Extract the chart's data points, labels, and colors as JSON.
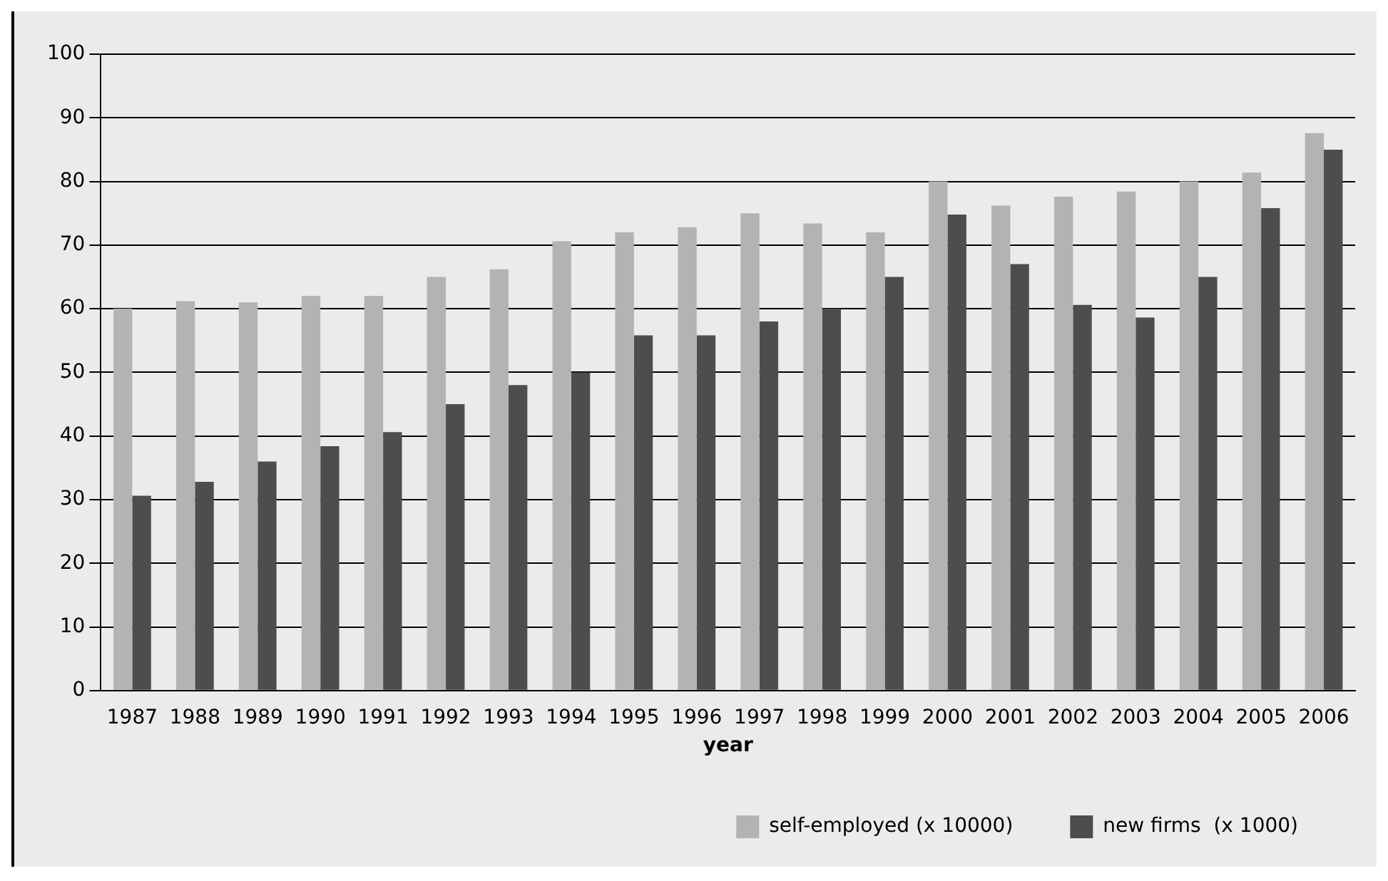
{
  "chart_data": {
    "type": "bar",
    "xlabel": "year",
    "categories": [
      "1987",
      "1988",
      "1989",
      "1990",
      "1991",
      "1992",
      "1993",
      "1994",
      "1995",
      "1996",
      "1997",
      "1998",
      "1999",
      "2000",
      "2001",
      "2002",
      "2003",
      "2004",
      "2005",
      "2006"
    ],
    "series": [
      {
        "name": "self-employed (x 10000)",
        "color": "#b3b3b3",
        "values": [
          60,
          61.2,
          61,
          62,
          62,
          65,
          66.2,
          70.6,
          72,
          72.8,
          75,
          73.4,
          72,
          80,
          76.2,
          77.6,
          78.4,
          80,
          81.4,
          87.6
        ]
      },
      {
        "name": "new firms  (x 1000)",
        "color": "#4d4d4d",
        "values": [
          30.6,
          32.8,
          36,
          38.4,
          40.6,
          45,
          48,
          50,
          55.8,
          55.8,
          58,
          60,
          65,
          74.8,
          67,
          60.6,
          58.6,
          65,
          75.8,
          85
        ]
      }
    ],
    "ylim": [
      0,
      100
    ],
    "yticks": [
      0,
      10,
      20,
      30,
      40,
      50,
      60,
      70,
      80,
      90,
      100
    ],
    "grid": "y",
    "legend": "bottom right"
  }
}
